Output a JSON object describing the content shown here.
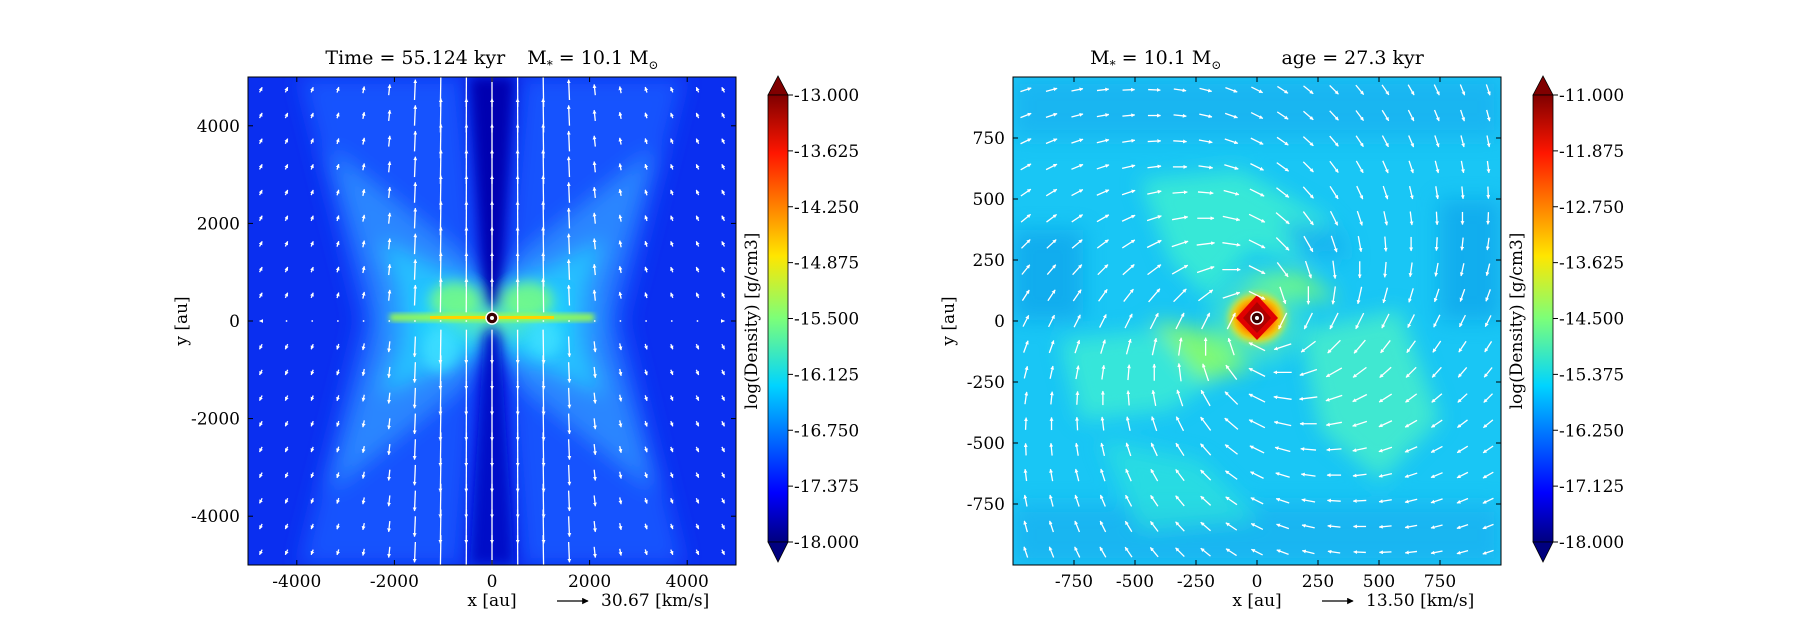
{
  "chart_data": [
    {
      "type": "heatmap",
      "title": "Time = 55.124 kyr    M$_*$ = 10.1 M$_\\odot$",
      "title_parts": {
        "time": "Time = 55.124 kyr",
        "mass_prefix": "M",
        "mass_sub": "*",
        "mass_mid": " = 10.1 M",
        "mass_unit_sub": "⊙"
      },
      "xlabel": "x [au]",
      "ylabel": "y [au]",
      "xlim": [
        -5000,
        5000
      ],
      "ylim": [
        -5000,
        5000
      ],
      "xticks": [
        -4000,
        -2000,
        0,
        2000,
        4000
      ],
      "xtick_labels": [
        "-4000",
        "-2000",
        "0",
        "2000",
        "4000"
      ],
      "yticks": [
        -4000,
        -2000,
        0,
        2000,
        4000
      ],
      "ytick_labels": [
        "-4000",
        "-2000",
        "0",
        "2000",
        "4000"
      ],
      "colorbar": {
        "label": "log(Density) [g/cm3]",
        "range": [
          -18.0,
          -13.0
        ],
        "ticks": [
          -13.0,
          -13.625,
          -14.25,
          -14.875,
          -15.5,
          -16.125,
          -16.75,
          -17.375,
          -18.0
        ],
        "tick_labels": [
          "-13.000",
          "-13.625",
          "-14.250",
          "-14.875",
          "-15.500",
          "-16.125",
          "-16.750",
          "-17.375",
          "-18.000"
        ],
        "extend": "both"
      },
      "velocity_key": {
        "value": 30.67,
        "label": "30.67 [km/s]"
      },
      "features": {
        "background_log_density": -16.9,
        "disk_log_density": -15.2,
        "disk_half_length_au": 2000,
        "bipolar_outflow": true,
        "star_at": [
          0,
          0
        ]
      }
    },
    {
      "type": "heatmap",
      "title": "M$_*$ = 10.1 M$_\\odot$    age = 27.3 kyr",
      "title_parts": {
        "mass_prefix": "M",
        "mass_sub": "*",
        "mass_mid": " = 10.1 M",
        "mass_unit_sub": "⊙",
        "age": "age = 27.3 kyr"
      },
      "xlabel": "x [au]",
      "ylabel": "y [au]",
      "xlim": [
        -1000,
        1000
      ],
      "ylim": [
        -1000,
        1000
      ],
      "xticks": [
        -750,
        -500,
        -250,
        0,
        250,
        500,
        750
      ],
      "xtick_labels": [
        "-750",
        "-500",
        "-250",
        "0",
        "250",
        "500",
        "750"
      ],
      "yticks": [
        -750,
        -500,
        -250,
        0,
        250,
        500,
        750
      ],
      "ytick_labels": [
        "-750",
        "-500",
        "-250",
        "0",
        "250",
        "500",
        "750"
      ],
      "colorbar": {
        "label": "log(Density) [g/cm3]",
        "range": [
          -18.0,
          -11.0
        ],
        "ticks": [
          -11.0,
          -11.875,
          -12.75,
          -13.625,
          -14.5,
          -15.375,
          -16.25,
          -17.125,
          -18.0
        ],
        "tick_labels": [
          "-11.000",
          "-11.875",
          "-12.750",
          "-13.625",
          "-14.500",
          "-15.375",
          "-16.250",
          "-17.125",
          "-18.000"
        ],
        "extend": "both"
      },
      "velocity_key": {
        "value": 13.5,
        "label": "13.50 [km/s]"
      },
      "features": {
        "background_log_density": -15.6,
        "spiral_arms": true,
        "core_log_density": -11.3,
        "star_at": [
          0,
          0
        ]
      }
    }
  ]
}
